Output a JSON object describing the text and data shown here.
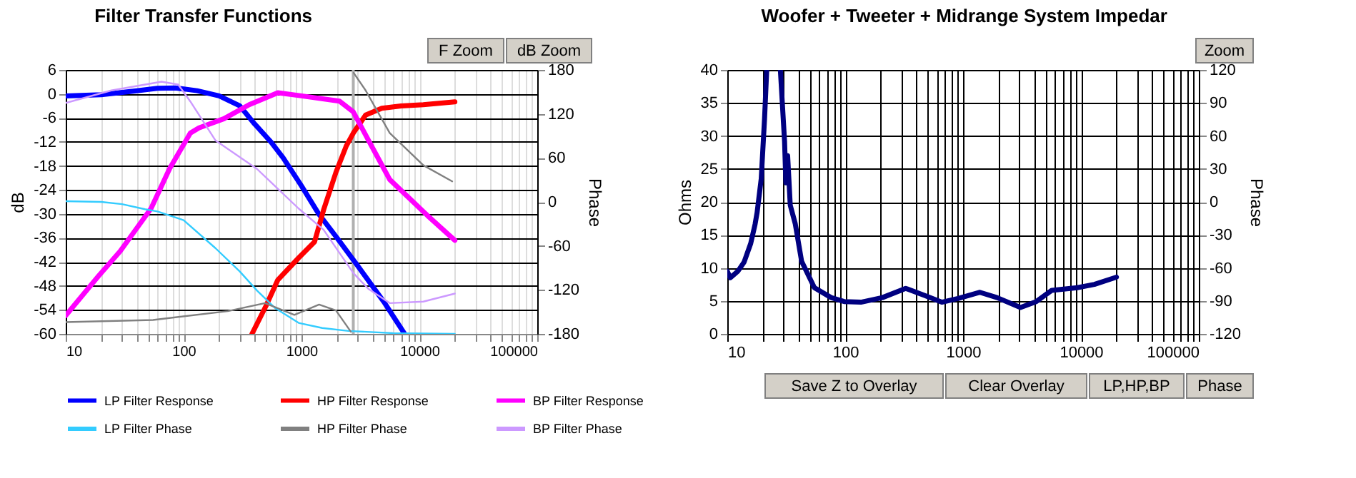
{
  "chart_data": [
    {
      "type": "line",
      "title": "Filter Transfer Functions",
      "ylabel": "dB",
      "y2label": "Phase",
      "log": "x",
      "xlim": [
        10,
        100000
      ],
      "xticks": [
        10,
        100,
        1000,
        10000,
        100000
      ],
      "ylim": [
        -60,
        6
      ],
      "yticks": [
        -60,
        -54,
        -48,
        -42,
        -36,
        -30,
        -24,
        -18,
        -12,
        -6,
        0,
        6
      ],
      "y2lim": [
        -180,
        180
      ],
      "y2ticks": [
        -180,
        -120,
        -60,
        0,
        60,
        120,
        180
      ],
      "grid": true,
      "legend": "bottom",
      "annotations": [
        "F Zoom",
        "dB Zoom"
      ],
      "ref_lines": [
        {
          "axis": "x",
          "value": 2750,
          "color": "#b0b0b0"
        }
      ],
      "series": [
        {
          "name": "LP Filter Response",
          "color": "#0000ff",
          "x": [
            10,
            20,
            40,
            60,
            85,
            130,
            200,
            300,
            400,
            550,
            700,
            1000,
            1400,
            2000,
            3000,
            5000,
            7500
          ],
          "values": [
            -0.5,
            -0.2,
            0.8,
            1.4,
            1.5,
            0.8,
            -0.5,
            -3,
            -7.5,
            -12,
            -16,
            -23,
            -30,
            -36,
            -43,
            -52,
            -60
          ]
        },
        {
          "name": "HP Filter Response",
          "color": "#ff0000",
          "x": [
            380,
            500,
            630,
            945,
            1290,
            1540,
            1960,
            2400,
            2750,
            3500,
            4800,
            7000,
            10800,
            20000
          ],
          "values": [
            -60,
            -53,
            -46.5,
            -41,
            -37,
            -29,
            -19.6,
            -13,
            -9.8,
            -5.3,
            -3.6,
            -3,
            -2.7,
            -2
          ]
        },
        {
          "name": "BP Filter Response",
          "color": "#ff00ff",
          "x": [
            10,
            19,
            29,
            53,
            76,
            114,
            135,
            220,
            360,
            630,
            950,
            2100,
            2750,
            3700,
            5600,
            11700,
            20000
          ],
          "values": [
            -55.4,
            -45.5,
            -39.3,
            -28.6,
            -18.7,
            -9.8,
            -8.5,
            -6.2,
            -2.7,
            0.3,
            -0.4,
            -1.8,
            -4.5,
            -11.6,
            -21.4,
            -30.4,
            -36.6
          ]
        },
        {
          "name": "LP Filter Phase",
          "color": "#33ccff",
          "axis": "y2",
          "x": [
            10,
            20,
            30,
            47,
            60,
            100,
            186,
            300,
            420,
            600,
            945,
            1500,
            2500,
            6000,
            20000
          ],
          "values": [
            1,
            0,
            -3,
            -10,
            -13,
            -25,
            -63,
            -95,
            -121,
            -145,
            -165,
            -172,
            -176,
            -179,
            -180
          ]
        },
        {
          "name": "HP Filter Phase",
          "color": "#808080",
          "axis": "y2",
          "x": [
            10,
            55,
            237,
            490,
            870,
            1410,
            1960,
            2620,
            2700,
            2770,
            3500,
            5600,
            10800,
            19000
          ],
          "values": [
            -164,
            -161,
            -149,
            -138,
            -154,
            -140,
            -148,
            -177,
            null,
            176,
            152,
            94,
            50,
            28
          ]
        },
        {
          "name": "BP Filter Phase",
          "color": "#cc99ff",
          "axis": "y2",
          "x": [
            10,
            24.4,
            65,
            90,
            114,
            186,
            419,
            945,
            1540,
            2750,
            3720,
            5600,
            10800,
            20000
          ],
          "values": [
            135,
            152,
            164,
            160,
            137,
            84,
            45,
            -9,
            -38,
            -97,
            -119,
            -138,
            -136,
            -125
          ]
        }
      ]
    },
    {
      "type": "line",
      "title": "Woofer + Tweeter + Midrange  System  Impedar",
      "ylabel": "Ohms",
      "y2label": "Phase",
      "log": "x",
      "xlim": [
        10,
        100000
      ],
      "xticks": [
        10,
        100,
        1000,
        10000,
        100000
      ],
      "ylim": [
        0,
        40
      ],
      "yticks": [
        0,
        5,
        10,
        15,
        20,
        25,
        30,
        35,
        40
      ],
      "y2lim": [
        -120,
        120
      ],
      "y2ticks": [
        -120,
        -90,
        -60,
        -30,
        0,
        30,
        60,
        90,
        120
      ],
      "grid": true,
      "annotations": [
        "Zoom",
        "Save Z to Overlay",
        "Clear Overlay",
        "LP,HP,BP",
        "Phase"
      ],
      "series": [
        {
          "color": "#000080",
          "x": [
            10,
            10.6,
            12.3,
            13.9,
            15.8,
            17.2,
            17.9,
            19.4,
            20.7,
            21.6,
            24.5,
            28.2,
            30.6,
            31.4,
            32.5,
            34.2,
            37.7,
            42.7,
            54.8,
            76,
            98,
            136,
            207,
            326,
            474,
            660,
            920,
            1390,
            1940,
            3070,
            4180,
            5660,
            9300,
            13000,
            20000
          ],
          "values": [
            9.5,
            8.5,
            9.5,
            10.9,
            13.7,
            16.6,
            18.4,
            23.5,
            32.6,
            40,
            null,
            40,
            29.2,
            22.9,
            27,
            19.5,
            16.7,
            11,
            7,
            5.5,
            4.9,
            4.8,
            5.5,
            6.9,
            5.8,
            4.8,
            5.4,
            6.3,
            5.5,
            4,
            4.9,
            6.6,
            7,
            7.5,
            8.6
          ]
        }
      ]
    }
  ]
}
